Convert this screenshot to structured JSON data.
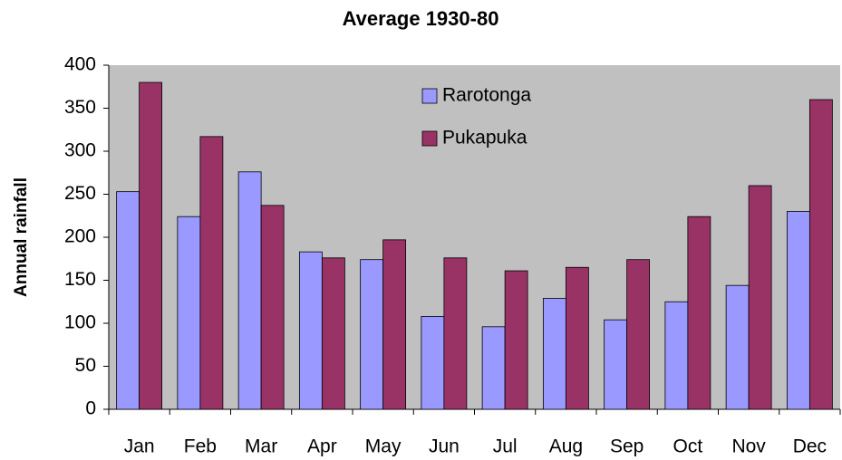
{
  "chart_data": {
    "type": "bar",
    "title": "Average 1930-80",
    "y_label": "Annual rainfall",
    "categories": [
      "Jan",
      "Feb",
      "Mar",
      "Apr",
      "May",
      "Jun",
      "Jul",
      "Aug",
      "Sep",
      "Oct",
      "Nov",
      "Dec"
    ],
    "series": [
      {
        "name": "Rarotonga",
        "color": "#9999ff",
        "values": [
          253,
          224,
          276,
          183,
          174,
          108,
          96,
          129,
          104,
          125,
          144,
          230
        ]
      },
      {
        "name": "Pukapuka",
        "color": "#993366",
        "values": [
          380,
          317,
          237,
          176,
          197,
          176,
          161,
          165,
          174,
          224,
          260,
          360
        ]
      }
    ],
    "ylim": [
      0,
      400
    ],
    "yticks": [
      0,
      50,
      100,
      150,
      200,
      250,
      300,
      350,
      400
    ],
    "grid": false,
    "legend": "top",
    "plot_background": "#c0c0c0"
  }
}
